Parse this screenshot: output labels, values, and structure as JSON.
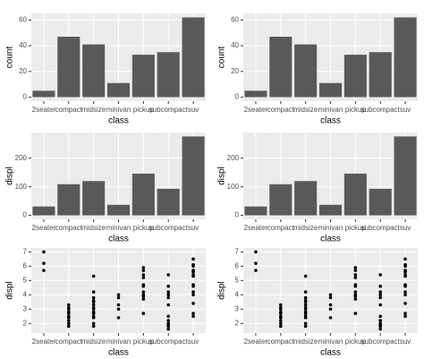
{
  "chart_data": [
    {
      "type": "bar",
      "xlabel": "class",
      "ylabel": "count",
      "categories": [
        "2seater",
        "compact",
        "midsize",
        "minivan",
        "pickup",
        "subcompact",
        "suv"
      ],
      "values": [
        5,
        47,
        41,
        11,
        33,
        35,
        62
      ],
      "color": "#595959",
      "ylim": [
        -3.1,
        65.1
      ],
      "yticks": [
        0,
        20,
        40,
        60
      ],
      "grid": true
    },
    {
      "type": "bar",
      "xlabel": "class",
      "ylabel": "count",
      "categories": [
        "2seater",
        "compact",
        "midsize",
        "minivan",
        "pickup",
        "subcompact",
        "suv"
      ],
      "values": [
        5,
        47,
        41,
        11,
        33,
        35,
        62
      ],
      "color": "#595959",
      "ylim": [
        -3.1,
        65.1
      ],
      "yticks": [
        0,
        20,
        40,
        60
      ],
      "grid": true
    },
    {
      "type": "bar",
      "xlabel": "class",
      "ylabel": "displ",
      "categories": [
        "2seater",
        "compact",
        "midsize",
        "minivan",
        "pickup",
        "subcompact",
        "suv"
      ],
      "values": [
        31,
        109,
        120,
        37,
        146,
        93,
        276
      ],
      "color": "#595959",
      "ylim": [
        -13.8,
        289.8
      ],
      "yticks": [
        0,
        100,
        200
      ],
      "grid": true
    },
    {
      "type": "bar",
      "xlabel": "class",
      "ylabel": "displ",
      "categories": [
        "2seater",
        "compact",
        "midsize",
        "minivan",
        "pickup",
        "subcompact",
        "suv"
      ],
      "values": [
        31,
        109,
        120,
        37,
        146,
        93,
        276
      ],
      "color": "#595959",
      "ylim": [
        -13.8,
        289.8
      ],
      "yticks": [
        0,
        100,
        200
      ],
      "grid": true
    },
    {
      "type": "strip",
      "xlabel": "class",
      "ylabel": "displ",
      "categories": [
        "2seater",
        "compact",
        "midsize",
        "minivan",
        "pickup",
        "subcompact",
        "suv"
      ],
      "values": [
        [
          5.7,
          6.2,
          7.0
        ],
        [
          1.8,
          2.0,
          2.2,
          2.4,
          2.5,
          2.7,
          2.8,
          3.0,
          3.1,
          3.3
        ],
        [
          1.8,
          2.0,
          2.4,
          2.5,
          2.7,
          2.8,
          3.0,
          3.1,
          3.3,
          3.5,
          3.6,
          3.8,
          4.2,
          5.3
        ],
        [
          2.4,
          3.0,
          3.3,
          3.8,
          4.0
        ],
        [
          2.7,
          3.7,
          3.9,
          4.0,
          4.2,
          4.6,
          4.7,
          5.2,
          5.4,
          5.7,
          5.9
        ],
        [
          1.6,
          1.8,
          1.9,
          2.0,
          2.2,
          2.5,
          3.3,
          3.8,
          4.0,
          4.2,
          4.6,
          5.4
        ],
        [
          2.5,
          2.7,
          3.4,
          4.0,
          4.2,
          4.6,
          4.7,
          5.3,
          5.4,
          5.6,
          5.7,
          6.0,
          6.1,
          6.5
        ]
      ],
      "color": "#000000",
      "ylim": [
        1.33,
        7.27
      ],
      "yticks": [
        2,
        3,
        4,
        5,
        6,
        7
      ],
      "grid": true
    },
    {
      "type": "strip",
      "xlabel": "class",
      "ylabel": "displ",
      "categories": [
        "2seater",
        "compact",
        "midsize",
        "minivan",
        "pickup",
        "subcompact",
        "suv"
      ],
      "values": [
        [
          5.7,
          6.2,
          7.0
        ],
        [
          1.8,
          2.0,
          2.2,
          2.4,
          2.5,
          2.7,
          2.8,
          3.0,
          3.1,
          3.3
        ],
        [
          1.8,
          2.0,
          2.4,
          2.5,
          2.7,
          2.8,
          3.0,
          3.1,
          3.3,
          3.5,
          3.6,
          3.8,
          4.2,
          5.3
        ],
        [
          2.4,
          3.0,
          3.3,
          3.8,
          4.0
        ],
        [
          2.7,
          3.7,
          3.9,
          4.0,
          4.2,
          4.6,
          4.7,
          5.2,
          5.4,
          5.7,
          5.9
        ],
        [
          1.6,
          1.8,
          1.9,
          2.0,
          2.2,
          2.5,
          3.3,
          3.8,
          4.0,
          4.2,
          4.6,
          5.4
        ],
        [
          2.5,
          2.7,
          3.4,
          4.0,
          4.2,
          4.6,
          4.7,
          5.3,
          5.4,
          5.6,
          5.7,
          6.0,
          6.1,
          6.5
        ]
      ],
      "color": "#000000",
      "ylim": [
        1.33,
        7.27
      ],
      "yticks": [
        2,
        3,
        4,
        5,
        6,
        7
      ],
      "grid": true
    }
  ]
}
